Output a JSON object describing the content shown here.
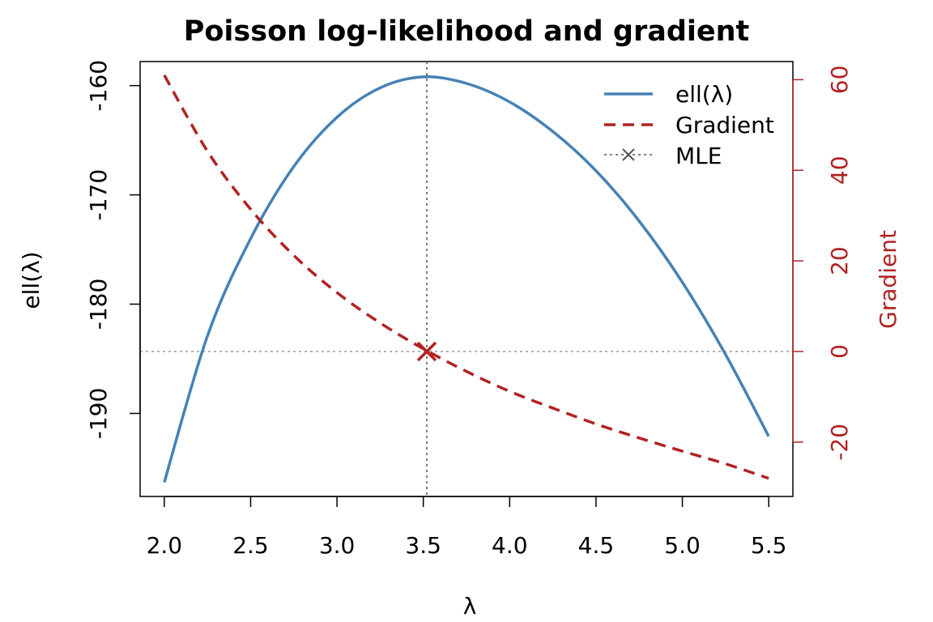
{
  "chart_data": {
    "type": "line",
    "title": "Poisson log-likelihood and gradient",
    "xlabel": "λ",
    "ylabel_left": "ell(λ)",
    "ylabel_right": "Gradient",
    "xlim": [
      1.86,
      5.64
    ],
    "ylim_left": [
      -197.6,
      -157.8
    ],
    "ylim_right": [
      -32.0,
      64.0
    ],
    "x_ticks": [
      "2.0",
      "2.5",
      "3.0",
      "3.5",
      "4.0",
      "4.5",
      "5.0",
      "5.5"
    ],
    "x_tick_values": [
      2.0,
      2.5,
      3.0,
      3.5,
      4.0,
      4.5,
      5.0,
      5.5
    ],
    "y_left_ticks": [
      "-190",
      "-180",
      "-170",
      "-160"
    ],
    "y_left_tick_values": [
      -190,
      -180,
      -170,
      -160
    ],
    "y_right_ticks": [
      "-20",
      "0",
      "20",
      "40",
      "60"
    ],
    "y_right_tick_values": [
      -20,
      0,
      20,
      40,
      60
    ],
    "grid": false,
    "legend_position": "top-right",
    "legend": [
      "ell(λ)",
      "Gradient",
      "MLE"
    ],
    "mle": {
      "x": 3.52,
      "gradient": 0,
      "ell": -159.2
    },
    "series": [
      {
        "name": "ell(λ)",
        "axis": "left",
        "color": "#4682B4",
        "style": "solid",
        "x": [
          2.0,
          2.25,
          2.5,
          2.75,
          3.0,
          3.25,
          3.5,
          3.75,
          4.0,
          4.25,
          4.5,
          4.75,
          5.0,
          5.25,
          5.5
        ],
        "values": [
          -196.3,
          -182.9,
          -174.0,
          -167.4,
          -162.9,
          -160.2,
          -159.2,
          -159.8,
          -161.5,
          -164.2,
          -167.8,
          -172.4,
          -178.0,
          -184.6,
          -192.1
        ]
      },
      {
        "name": "Gradient",
        "axis": "right",
        "color": "#B22222",
        "style": "dashed",
        "x": [
          2.0,
          2.25,
          2.5,
          2.75,
          3.0,
          3.25,
          3.5,
          3.75,
          4.0,
          4.25,
          4.5,
          4.75,
          5.0,
          5.25,
          5.5
        ],
        "values": [
          61.0,
          44.2,
          31.4,
          21.2,
          13.0,
          6.3,
          0.6,
          -4.4,
          -8.8,
          -12.5,
          -16.0,
          -19.1,
          -22.0,
          -24.8,
          -28.0
        ]
      }
    ],
    "colors": {
      "ell": "#4682B4",
      "gradient": "#B22222",
      "reference": "#999999",
      "mle_vline": "#555555",
      "axis": "#000000"
    }
  }
}
